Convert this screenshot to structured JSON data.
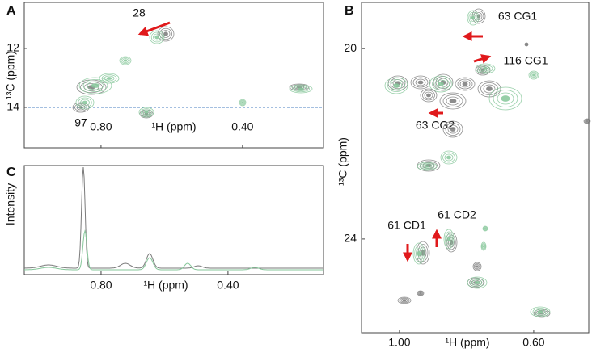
{
  "chart_data": [
    {
      "type": "contour",
      "panel": "A",
      "xlabel": "¹H (ppm)",
      "ylabel": "¹³C (ppm)",
      "xlim": [
        1.017,
        0.171
      ],
      "xticks": [
        {
          "value": 0.8,
          "label": "0.80"
        },
        {
          "value": 0.4,
          "label": "0.40"
        }
      ],
      "ylim": [
        10.44,
        15.37
      ],
      "yticks": [
        12,
        14
      ],
      "colors": [
        "#7a7a7a",
        "#86c79a"
      ],
      "annotations": [
        "28",
        "97"
      ]
    },
    {
      "type": "contour",
      "panel": "B",
      "xlabel": "¹H (ppm)",
      "ylabel": "¹³C (ppm)",
      "xlim": [
        1.113,
        0.436
      ],
      "xticks": [
        {
          "value": 1.0,
          "label": "1.00"
        },
        {
          "value": 0.6,
          "label": "0.60"
        }
      ],
      "ylim": [
        19.03,
        25.97
      ],
      "yticks": [
        20,
        24
      ],
      "colors": [
        "#7a7a7a",
        "#86c79a"
      ],
      "annotations": [
        "63 CG1",
        "116 CG1",
        "63 CG2",
        "61 CD1",
        "61 CD2"
      ]
    },
    {
      "type": "line",
      "panel": "C",
      "xlabel": "¹H (ppm)",
      "ylabel": "Intensity",
      "xlim": [
        1.042,
        0.099
      ],
      "xticks": [
        {
          "value": 0.8,
          "label": "0.80"
        },
        {
          "value": 0.4,
          "label": "0.40"
        }
      ],
      "colors": [
        "#7a7a7a",
        "#86c79a"
      ]
    }
  ]
}
